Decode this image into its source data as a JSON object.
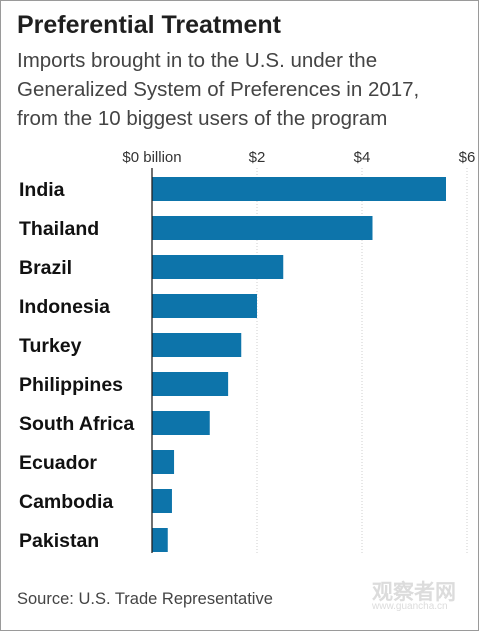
{
  "chart_data": {
    "type": "bar",
    "orientation": "horizontal",
    "title": "Preferential Treatment",
    "subtitle_lines": [
      "Imports brought in to the U.S. under the",
      "Generalized System of Preferences in 2017,",
      "from the 10 biggest users of the program"
    ],
    "categories": [
      "India",
      "Thailand",
      "Brazil",
      "Indonesia",
      "Turkey",
      "Philippines",
      "South Africa",
      "Ecuador",
      "Cambodia",
      "Pakistan"
    ],
    "values": [
      5.6,
      4.2,
      2.5,
      2.0,
      1.7,
      1.45,
      1.1,
      0.42,
      0.38,
      0.3
    ],
    "xlim": [
      0,
      6
    ],
    "x_ticks": [
      0,
      2,
      4,
      6
    ],
    "x_tick_labels": [
      "$0 billion",
      "$2",
      "$4",
      "$6"
    ],
    "grid": true,
    "bar_color": "#0d74aa"
  },
  "source": "Source: U.S. Trade Representative",
  "watermark": {
    "text": "观察者网",
    "sub": "www.guancha.cn"
  }
}
